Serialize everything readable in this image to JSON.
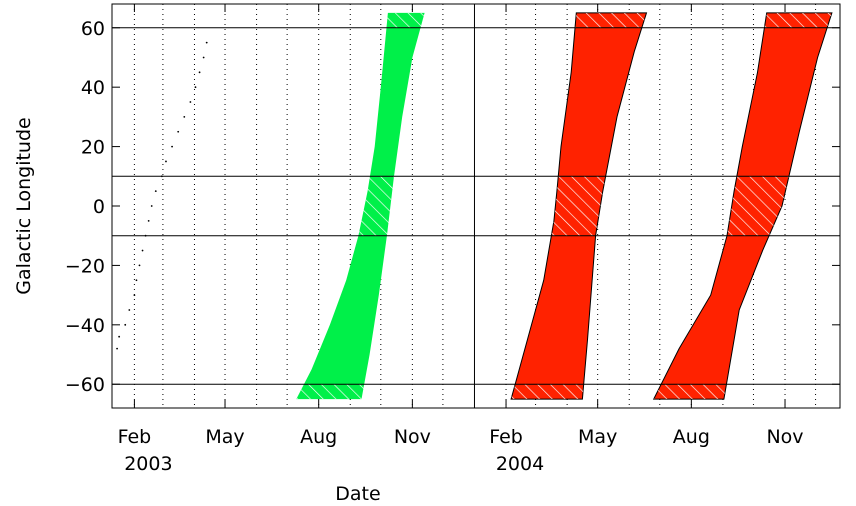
{
  "chart_data": {
    "type": "area",
    "title": "",
    "xlabel": "Date",
    "ylabel": "Galactic Longitude",
    "xlim": [
      "2003-01-10",
      "2004-12-25"
    ],
    "ylim": [
      -68,
      68
    ],
    "x_ticks": [
      {
        "date": "2003-02-01",
        "label": "Feb",
        "year": "2003"
      },
      {
        "date": "2003-05-01",
        "label": "May",
        "year": ""
      },
      {
        "date": "2003-08-01",
        "label": "Aug",
        "year": ""
      },
      {
        "date": "2003-11-01",
        "label": "Nov",
        "year": ""
      },
      {
        "date": "2004-02-01",
        "label": "Feb",
        "year": "2004"
      },
      {
        "date": "2004-05-01",
        "label": "May",
        "year": ""
      },
      {
        "date": "2004-08-01",
        "label": "Aug",
        "year": ""
      },
      {
        "date": "2004-11-01",
        "label": "Nov",
        "year": ""
      }
    ],
    "y_ticks": [
      -60,
      -40,
      -20,
      0,
      20,
      40,
      60
    ],
    "vertical_solid_lines": [
      "2004-01-01"
    ],
    "vertical_dotted_lines": [
      "2003-02-01",
      "2003-03-01",
      "2003-04-01",
      "2003-05-01",
      "2003-06-01",
      "2003-07-01",
      "2003-08-01",
      "2003-09-01",
      "2003-10-01",
      "2003-11-01",
      "2003-12-01",
      "2004-02-01",
      "2004-03-01",
      "2004-04-01",
      "2004-05-01",
      "2004-06-01",
      "2004-07-01",
      "2004-08-01",
      "2004-09-01",
      "2004-10-01",
      "2004-11-01",
      "2004-12-01"
    ],
    "horizontal_lines": [
      60,
      10,
      -10,
      -60
    ],
    "hatched_bands": [
      [
        60,
        65
      ],
      [
        -10,
        10
      ],
      [
        -65,
        -60
      ]
    ],
    "series": [
      {
        "color": "#00f049",
        "outline": false,
        "left_edge": [
          {
            "date": "2003-07-10",
            "lon": -65
          },
          {
            "date": "2003-07-25",
            "lon": -55
          },
          {
            "date": "2003-08-12",
            "lon": -40
          },
          {
            "date": "2003-08-28",
            "lon": -25
          },
          {
            "date": "2003-09-09",
            "lon": -10
          },
          {
            "date": "2003-09-18",
            "lon": 5
          },
          {
            "date": "2003-09-25",
            "lon": 20
          },
          {
            "date": "2003-10-01",
            "lon": 40
          },
          {
            "date": "2003-10-08",
            "lon": 65
          }
        ],
        "right_edge": [
          {
            "date": "2003-11-13",
            "lon": 65
          },
          {
            "date": "2003-11-01",
            "lon": 50
          },
          {
            "date": "2003-10-22",
            "lon": 30
          },
          {
            "date": "2003-10-14",
            "lon": 10
          },
          {
            "date": "2003-10-07",
            "lon": -10
          },
          {
            "date": "2003-09-29",
            "lon": -30
          },
          {
            "date": "2003-09-20",
            "lon": -50
          },
          {
            "date": "2003-09-12",
            "lon": -65
          }
        ]
      },
      {
        "color": "#ff2200",
        "outline": true,
        "left_edge": [
          {
            "date": "2004-02-06",
            "lon": -65
          },
          {
            "date": "2004-02-22",
            "lon": -45
          },
          {
            "date": "2004-03-09",
            "lon": -25
          },
          {
            "date": "2004-03-19",
            "lon": -5
          },
          {
            "date": "2004-03-22",
            "lon": 5
          },
          {
            "date": "2004-03-26",
            "lon": 20
          },
          {
            "date": "2004-04-05",
            "lon": 45
          },
          {
            "date": "2004-04-10",
            "lon": 65
          }
        ],
        "right_edge": [
          {
            "date": "2004-06-18",
            "lon": 65
          },
          {
            "date": "2004-06-06",
            "lon": 52
          },
          {
            "date": "2004-05-20",
            "lon": 30
          },
          {
            "date": "2004-05-06",
            "lon": 5
          },
          {
            "date": "2004-04-29",
            "lon": -10
          },
          {
            "date": "2004-04-21",
            "lon": -45
          },
          {
            "date": "2004-04-16",
            "lon": -65
          }
        ]
      },
      {
        "color": "#ff2200",
        "outline": true,
        "left_edge": [
          {
            "date": "2004-06-25",
            "lon": -65
          },
          {
            "date": "2004-07-20",
            "lon": -48
          },
          {
            "date": "2004-08-20",
            "lon": -30
          },
          {
            "date": "2004-09-05",
            "lon": -10
          },
          {
            "date": "2004-09-12",
            "lon": 5
          },
          {
            "date": "2004-09-20",
            "lon": 20
          },
          {
            "date": "2004-10-05",
            "lon": 45
          },
          {
            "date": "2004-10-14",
            "lon": 65
          }
        ],
        "right_edge": [
          {
            "date": "2004-12-17",
            "lon": 65
          },
          {
            "date": "2004-12-03",
            "lon": 50
          },
          {
            "date": "2004-11-15",
            "lon": 25
          },
          {
            "date": "2004-10-29",
            "lon": 0
          },
          {
            "date": "2004-10-10",
            "lon": -15
          },
          {
            "date": "2004-09-17",
            "lon": -35
          },
          {
            "date": "2004-09-02",
            "lon": -65
          }
        ]
      }
    ],
    "scatter": [
      {
        "date": "2003-01-15",
        "lon": -48
      },
      {
        "date": "2003-01-17",
        "lon": -44
      },
      {
        "date": "2003-01-23",
        "lon": -40
      },
      {
        "date": "2003-01-27",
        "lon": -35
      },
      {
        "date": "2003-02-01",
        "lon": -30
      },
      {
        "date": "2003-02-03",
        "lon": -25
      },
      {
        "date": "2003-02-06",
        "lon": -20
      },
      {
        "date": "2003-02-09",
        "lon": -15
      },
      {
        "date": "2003-02-12",
        "lon": -10
      },
      {
        "date": "2003-02-15",
        "lon": -5
      },
      {
        "date": "2003-02-18",
        "lon": 0
      },
      {
        "date": "2003-02-22",
        "lon": 5
      },
      {
        "date": "2003-02-28",
        "lon": 10
      },
      {
        "date": "2003-03-04",
        "lon": 15
      },
      {
        "date": "2003-03-10",
        "lon": 20
      },
      {
        "date": "2003-03-16",
        "lon": 25
      },
      {
        "date": "2003-03-22",
        "lon": 30
      },
      {
        "date": "2003-03-28",
        "lon": 35
      },
      {
        "date": "2003-04-02",
        "lon": 40
      },
      {
        "date": "2003-04-06",
        "lon": 45
      },
      {
        "date": "2003-04-10",
        "lon": 50
      },
      {
        "date": "2003-04-13",
        "lon": 55
      }
    ]
  }
}
